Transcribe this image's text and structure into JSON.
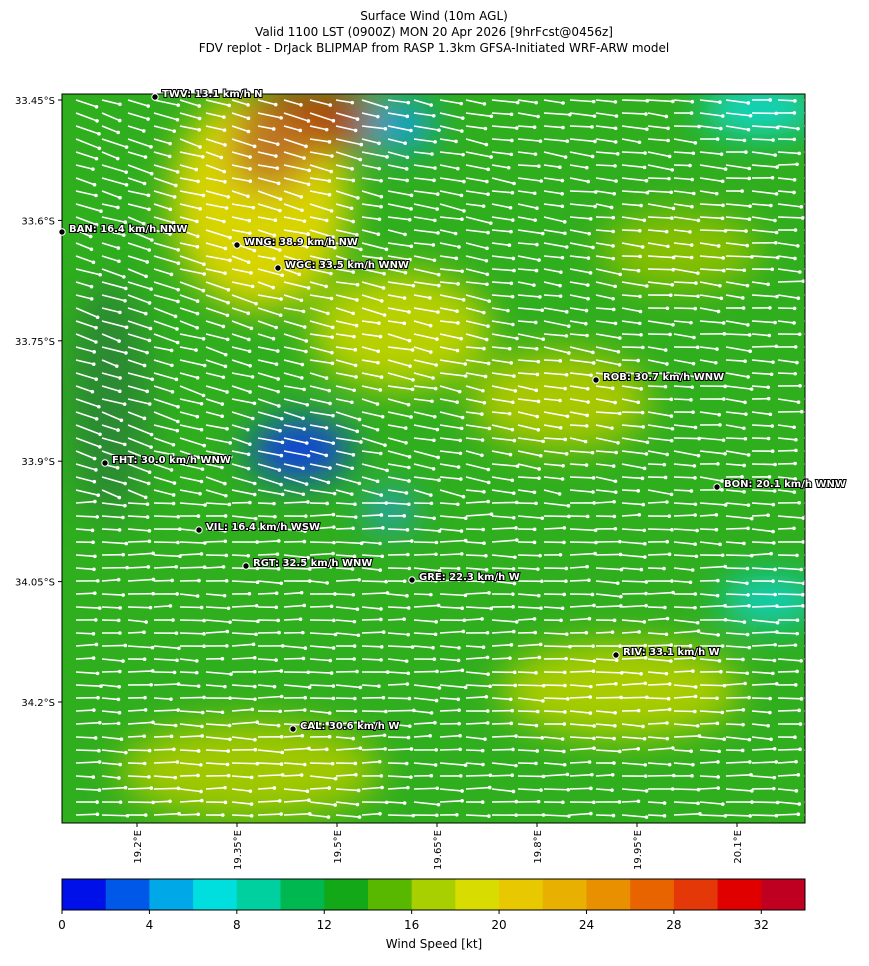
{
  "header": {
    "title": "Surface Wind (10m AGL)",
    "valid": "Valid 1100 LST (0900Z) MON 20 Apr 2026 [9hrFcst@0456z]",
    "source": "FDV replot - DrJack BLIPMAP from RASP 1.3km GFSA-Initiated WRF-ARW model"
  },
  "axes": {
    "lat_ticks": [
      "33.45°S",
      "33.6°S",
      "33.75°S",
      "33.9°S",
      "34.05°S",
      "34.2°S"
    ],
    "lon_ticks": [
      "19.2°E",
      "19.35°E",
      "19.5°E",
      "19.65°E",
      "19.8°E",
      "19.95°E",
      "20.1°E"
    ]
  },
  "stations": [
    "TWV: 13.1 km/h N",
    "BAN: 16.4 km/h NNW",
    "WNG: 38.9 km/h NW",
    "WGC: 33.5 km/h WNW",
    "ROB: 30.7 km/h WNW",
    "FHT: 30.0 km/h WNW",
    "BON: 20.1 km/h WNW",
    "VIL: 16.4 km/h WSW",
    "RGT: 32.5 km/h WNW",
    "GRE: 22.3 km/h W",
    "RIV: 33.1 km/h W",
    "CAL: 30.6 km/h W"
  ],
  "colorbar": {
    "label": "Wind Speed [kt]",
    "lim": [
      0,
      34
    ],
    "ticks": [
      0,
      4,
      8,
      12,
      16,
      20,
      24,
      28,
      32
    ],
    "colors": [
      "#0010e8",
      "#0058e8",
      "#00a8e8",
      "#00dede",
      "#00d0a0",
      "#00b850",
      "#12a818",
      "#58b800",
      "#a8d000",
      "#d8dc00",
      "#e8c800",
      "#e8b000",
      "#e89000",
      "#e86400",
      "#e43808",
      "#e00000",
      "#c00020"
    ]
  }
}
